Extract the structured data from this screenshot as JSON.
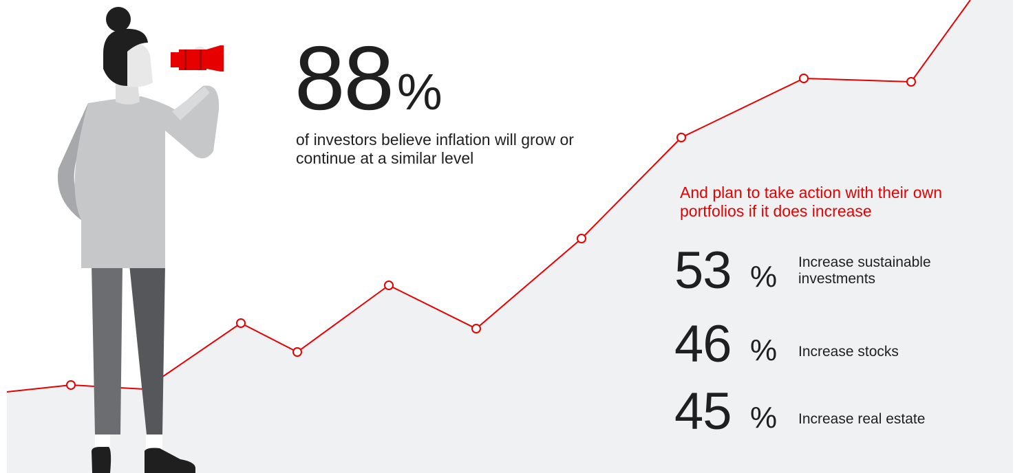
{
  "headline": {
    "value": "88",
    "unit": "%",
    "description": "of investors believe inflation will grow or continue at a similar level"
  },
  "callout": "And plan to take action with their own portfolios if it does increase",
  "stats": [
    {
      "value": "53",
      "unit": "%",
      "label": "Increase sustainable investments"
    },
    {
      "value": "46",
      "unit": "%",
      "label": "Increase stocks"
    },
    {
      "value": "45",
      "unit": "%",
      "label": "Increase real estate"
    }
  ],
  "colors": {
    "accent": "#e60000",
    "area": "#f0f1f3",
    "text": "#1f1f1f"
  },
  "icons": {
    "person": "person-with-telescope-illustration",
    "telescope": "telescope-icon"
  }
}
